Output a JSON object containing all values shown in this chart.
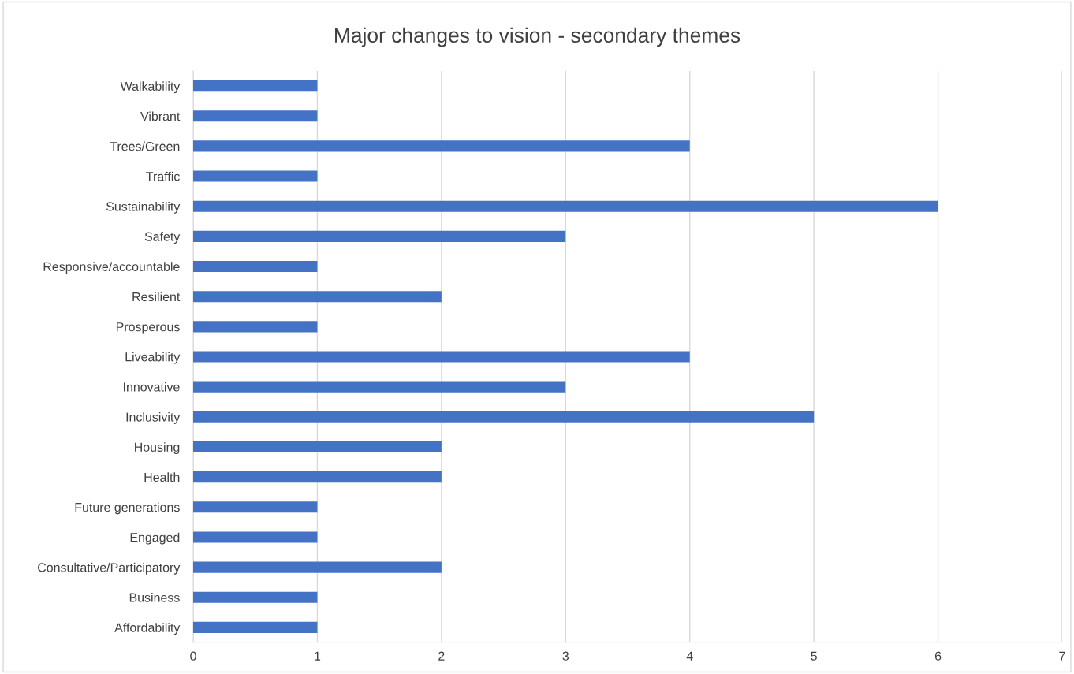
{
  "chart_data": {
    "type": "bar",
    "orientation": "horizontal",
    "title": "Major changes to vision - secondary themes",
    "categories": [
      "Walkability",
      "Vibrant",
      "Trees/Green",
      "Traffic",
      "Sustainability",
      "Safety",
      "Responsive/accountable",
      "Resilient",
      "Prosperous",
      "Liveability",
      "Innovative",
      "Inclusivity",
      "Housing",
      "Health",
      "Future generations",
      "Engaged",
      "Consultative/Participatory",
      "Business",
      "Affordability"
    ],
    "values": [
      1,
      1,
      4,
      1,
      6,
      3,
      1,
      2,
      1,
      4,
      3,
      5,
      2,
      2,
      1,
      1,
      2,
      1,
      1
    ],
    "color": "#4472c4",
    "xlim": [
      0,
      7
    ],
    "xticks": [
      0,
      1,
      2,
      3,
      4,
      5,
      6,
      7
    ],
    "grid": "x"
  }
}
